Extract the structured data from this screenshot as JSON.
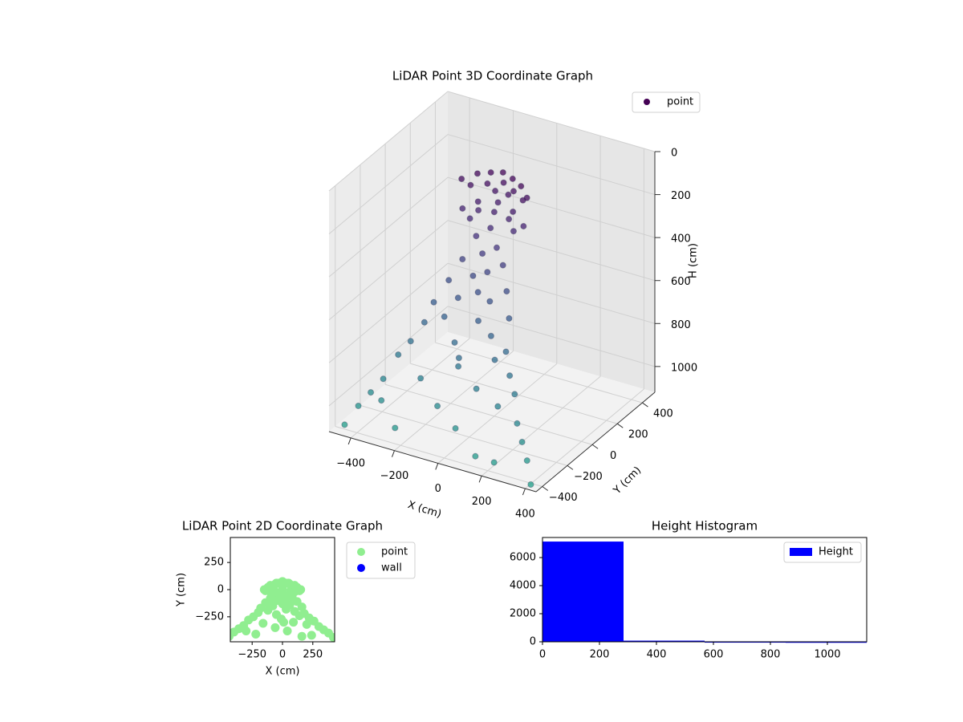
{
  "chart_data": [
    {
      "type": "scatter3d",
      "title": "LiDAR Point 3D Coordinate Graph",
      "xlabel": "X (cm)",
      "ylabel": "Y (cm)",
      "zlabel": "H (cm)",
      "xlim": [
        -500,
        450
      ],
      "ylim": [
        -450,
        500
      ],
      "zlim": [
        0,
        1120
      ],
      "zinverted": true,
      "xticks": [
        {
          "value": -400,
          "label": "−400"
        },
        {
          "value": -200,
          "label": "−200"
        },
        0,
        200,
        400
      ],
      "yticks": [
        {
          "value": -400,
          "label": "−400"
        },
        {
          "value": -200,
          "label": "−200"
        },
        0,
        200,
        400
      ],
      "zticks": [
        0,
        200,
        400,
        600,
        800,
        1000
      ],
      "legend": "upper right",
      "series": [
        {
          "name": "point",
          "color": "#440154",
          "colormap": "viridis",
          "x": [
            -150,
            -100,
            -50,
            0,
            50,
            100,
            150,
            -120,
            -60,
            0,
            60,
            120,
            -80,
            0,
            80,
            -140,
            -70,
            0,
            70,
            140,
            -100,
            0,
            100,
            -30,
            30,
            -60,
            40,
            -20,
            80,
            -100,
            20,
            -40,
            120,
            -140,
            0,
            60,
            -80,
            160,
            -180,
            30,
            -120,
            100,
            -200,
            180,
            -50,
            140,
            -240,
            220,
            -10,
            -280,
            260,
            90,
            -160,
            200,
            -320,
            300,
            -60,
            -360,
            340,
            40,
            -400,
            380,
            -220,
            240,
            -440,
            420,
            10,
            -300,
            160
          ],
          "y": [
            0,
            40,
            60,
            70,
            60,
            40,
            0,
            20,
            50,
            75,
            50,
            20,
            10,
            30,
            10,
            -10,
            -5,
            0,
            -5,
            -10,
            -20,
            -30,
            -20,
            60,
            60,
            -40,
            -50,
            -60,
            -70,
            -80,
            -90,
            -100,
            -110,
            -120,
            -130,
            -140,
            -150,
            -160,
            -170,
            -180,
            -190,
            -200,
            -210,
            -220,
            -230,
            -240,
            -250,
            -260,
            -270,
            -280,
            -290,
            -300,
            -310,
            -320,
            -330,
            -340,
            -350,
            -360,
            -370,
            -380,
            -390,
            -400,
            -410,
            -420,
            -430,
            -440,
            -300,
            -380,
            -430
          ],
          "z": [
            60,
            40,
            30,
            20,
            30,
            40,
            60,
            90,
            80,
            70,
            80,
            90,
            150,
            140,
            150,
            190,
            180,
            170,
            180,
            190,
            220,
            230,
            220,
            110,
            110,
            280,
            300,
            340,
            360,
            380,
            400,
            430,
            450,
            470,
            480,
            500,
            520,
            540,
            560,
            580,
            600,
            620,
            640,
            660,
            680,
            700,
            720,
            740,
            760,
            780,
            800,
            820,
            840,
            860,
            880,
            900,
            920,
            940,
            960,
            980,
            1000,
            1020,
            1040,
            1060,
            1080,
            1100,
            700,
            950,
            1050
          ]
        }
      ]
    },
    {
      "type": "scatter",
      "title": "LiDAR Point 2D Coordinate Graph",
      "xlabel": "X (cm)",
      "ylabel": "Y (cm)",
      "xlim": [
        -430,
        430
      ],
      "ylim": [
        -480,
        480
      ],
      "xticks": [
        {
          "value": -250,
          "label": "−250"
        },
        0,
        250
      ],
      "yticks": [
        {
          "value": -250,
          "label": "−250"
        },
        0,
        250
      ],
      "legend": "outside upper right",
      "series": [
        {
          "name": "point",
          "color": "#90ee90",
          "x": [
            -150,
            -100,
            -50,
            0,
            50,
            100,
            150,
            -120,
            -60,
            0,
            60,
            120,
            -80,
            0,
            80,
            -140,
            -70,
            0,
            70,
            140,
            -100,
            0,
            100,
            -30,
            30,
            -60,
            40,
            -20,
            80,
            -100,
            20,
            -40,
            120,
            -140,
            0,
            60,
            -80,
            160,
            -180,
            30,
            -120,
            100,
            -200,
            180,
            -50,
            140,
            -240,
            220,
            -10,
            -280,
            260,
            90,
            -160,
            200,
            -320,
            300,
            -60,
            -360,
            340,
            40,
            -400,
            380,
            -220,
            240,
            -440,
            420,
            10,
            -300,
            160
          ],
          "y": [
            0,
            40,
            60,
            70,
            60,
            40,
            0,
            20,
            50,
            75,
            50,
            20,
            10,
            30,
            10,
            -10,
            -5,
            0,
            -5,
            -10,
            -20,
            -30,
            -20,
            60,
            60,
            -40,
            -50,
            -60,
            -70,
            -80,
            -90,
            -100,
            -110,
            -120,
            -130,
            -140,
            -150,
            -160,
            -170,
            -180,
            -190,
            -200,
            -210,
            -220,
            -230,
            -240,
            -250,
            -260,
            -270,
            -280,
            -290,
            -300,
            -310,
            -320,
            -330,
            -340,
            -350,
            -360,
            -370,
            -380,
            -390,
            -400,
            -410,
            -420,
            -430,
            -440,
            -300,
            -380,
            -430
          ]
        },
        {
          "name": "wall",
          "color": "#0000ff",
          "x": [],
          "y": []
        }
      ]
    },
    {
      "type": "histogram",
      "title": "Height Histogram",
      "bins": [
        0,
        284.5,
        569,
        853.5,
        1138
      ],
      "xlim": [
        0,
        1138
      ],
      "ylim": [
        0,
        7430
      ],
      "xticks": [
        0,
        200,
        400,
        600,
        800,
        1000
      ],
      "yticks": [
        0,
        2000,
        4000,
        6000
      ],
      "legend": "upper right",
      "series": [
        {
          "name": "Height",
          "color": "#0000ff",
          "values": [
            7140,
            80,
            25,
            15
          ]
        }
      ]
    }
  ]
}
